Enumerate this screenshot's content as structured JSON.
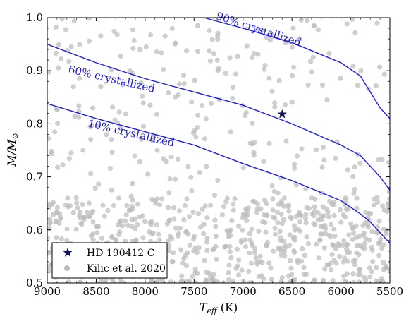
{
  "chart_data": {
    "type": "scatter",
    "title": "",
    "xlabel": "T_eff (K)",
    "xlabel_main": "T",
    "xlabel_sub": "eff",
    "xlabel_unit": " (K)",
    "ylabel": "M/M⊙",
    "ylabel_main": "M/M",
    "ylabel_sub": "⊙",
    "xlim": [
      9000,
      5500
    ],
    "ylim": [
      0.5,
      1.0
    ],
    "x_inverted": true,
    "xticks": [
      9000,
      8500,
      8000,
      7500,
      7000,
      6500,
      6000,
      5500
    ],
    "yticks": [
      0.5,
      0.6,
      0.7,
      0.8,
      0.9,
      1.0
    ],
    "grid": false,
    "legend_position": "bottom-left",
    "colors": {
      "curves": "#1a1ae6",
      "background_points": "#bdbdbd",
      "star": "#14145a"
    },
    "series": [
      {
        "name": "HD 190412 C",
        "marker": "star",
        "points": [
          [
            6600,
            0.818
          ]
        ]
      },
      {
        "name": "Kilic et al. 2020",
        "marker": "circle",
        "density_note": "background population",
        "x_range": [
          5500,
          9000
        ],
        "y_range": [
          0.5,
          1.0
        ],
        "count": 900
      }
    ],
    "curves": [
      {
        "label": "90% crystallized",
        "label_at": [
          6850,
          0.972
        ],
        "label_angle": 18,
        "points": [
          [
            7400,
            1.0
          ],
          [
            7000,
            0.98
          ],
          [
            6500,
            0.953
          ],
          [
            6000,
            0.915
          ],
          [
            5800,
            0.89
          ],
          [
            5700,
            0.86
          ],
          [
            5600,
            0.83
          ],
          [
            5500,
            0.81
          ]
        ]
      },
      {
        "label": "60% crystallized",
        "label_at": [
          8350,
          0.878
        ],
        "label_angle": 13,
        "points": [
          [
            9000,
            0.95
          ],
          [
            8500,
            0.915
          ],
          [
            8000,
            0.885
          ],
          [
            7500,
            0.86
          ],
          [
            7000,
            0.835
          ],
          [
            6500,
            0.8
          ],
          [
            6000,
            0.76
          ],
          [
            5800,
            0.74
          ],
          [
            5700,
            0.72
          ],
          [
            5600,
            0.7
          ],
          [
            5500,
            0.675
          ]
        ]
      },
      {
        "label": "10% crystallized",
        "label_at": [
          8150,
          0.776
        ],
        "label_angle": 13,
        "points": [
          [
            9000,
            0.838
          ],
          [
            8500,
            0.81
          ],
          [
            8000,
            0.785
          ],
          [
            7500,
            0.76
          ],
          [
            7000,
            0.725
          ],
          [
            6500,
            0.693
          ],
          [
            6000,
            0.655
          ],
          [
            5800,
            0.63
          ],
          [
            5700,
            0.615
          ],
          [
            5600,
            0.595
          ],
          [
            5500,
            0.575
          ]
        ]
      }
    ],
    "legend": [
      {
        "label": "HD 190412 C",
        "marker": "star"
      },
      {
        "label": "Kilic et al. 2020",
        "marker": "circle"
      }
    ]
  }
}
